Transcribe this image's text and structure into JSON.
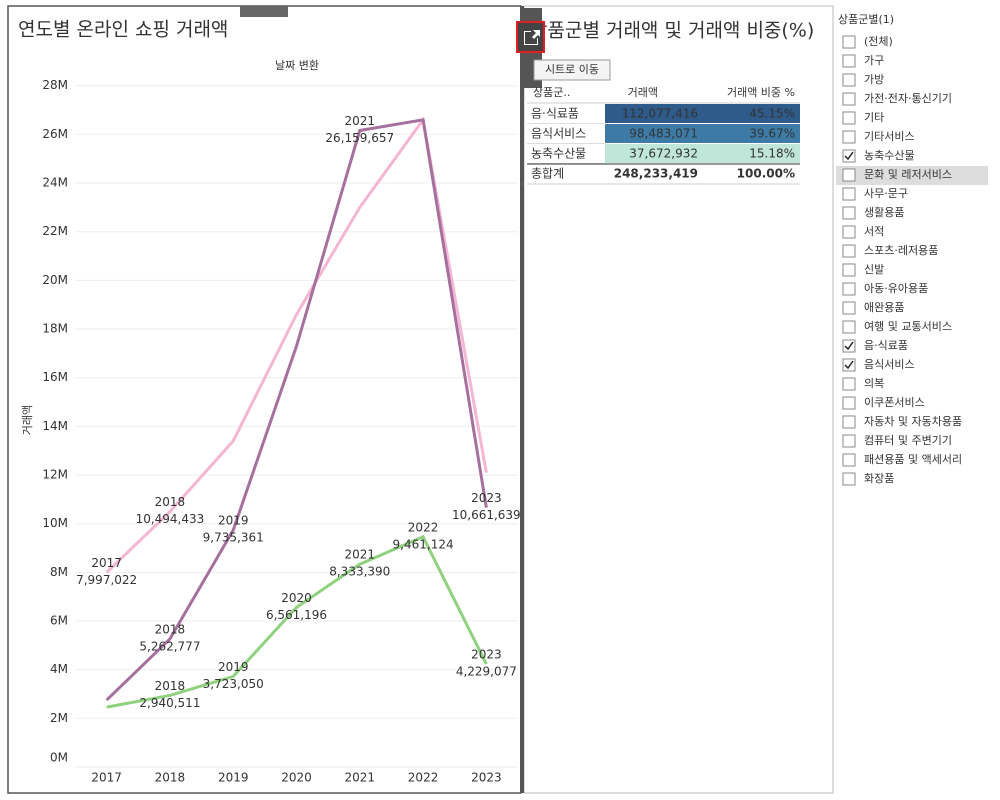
{
  "chart_data": {
    "type": "line",
    "title": "연도별 온라인 쇼핑 거래액",
    "x_axis_title": "날짜 변환",
    "y_axis_title": "거래액",
    "categories": [
      "2017",
      "2018",
      "2019",
      "2020",
      "2021",
      "2022",
      "2023"
    ],
    "ylim": [
      0,
      28400000
    ],
    "yticks": [
      {
        "value": 0,
        "label": "0M"
      },
      {
        "value": 2000000,
        "label": "2M"
      },
      {
        "value": 4000000,
        "label": "4M"
      },
      {
        "value": 6000000,
        "label": "6M"
      },
      {
        "value": 8000000,
        "label": "8M"
      },
      {
        "value": 10000000,
        "label": "10M"
      },
      {
        "value": 12000000,
        "label": "12M"
      },
      {
        "value": 14000000,
        "label": "14M"
      },
      {
        "value": 16000000,
        "label": "16M"
      },
      {
        "value": 18000000,
        "label": "18M"
      },
      {
        "value": 20000000,
        "label": "20M"
      },
      {
        "value": 22000000,
        "label": "22M"
      },
      {
        "value": 24000000,
        "label": "24M"
      },
      {
        "value": 26000000,
        "label": "26M"
      },
      {
        "value": 28000000,
        "label": "28M"
      }
    ],
    "grid": true,
    "series": [
      {
        "color": "#f4b6d2",
        "values": [
          7997022,
          10494433,
          13400000,
          18600000,
          23000000,
          26600000,
          12100000
        ],
        "value_labels": [
          "7,997,022",
          "10,494,433",
          null,
          null,
          null,
          null,
          null
        ]
      },
      {
        "color": "#a5709e",
        "values": [
          2750000,
          5262777,
          9735361,
          17300000,
          26159657,
          26600000,
          10661639
        ],
        "value_labels": [
          null,
          "5,262,777",
          "9,735,361",
          null,
          "26,159,657",
          null,
          "10,661,639"
        ]
      },
      {
        "color": "#8fd17e",
        "values": [
          2460000,
          2940511,
          3723050,
          6561196,
          8333390,
          9461124,
          4229077
        ],
        "value_labels": [
          null,
          "2,940,511",
          "3,723,050",
          "6,561,196",
          "8,333,390",
          "9,461,124",
          "4,229,077"
        ]
      }
    ]
  },
  "table": {
    "title": "상품군별 거래액 및 거래액 비중(%)",
    "tooltip": "시트로 이동",
    "headers": [
      "상품군..",
      "거래액",
      "거래액 비중 %"
    ],
    "rows": [
      [
        "음·식료품",
        "112,077,416",
        "45.15%"
      ],
      [
        "음식서비스",
        "98,483,071",
        "39.67%"
      ],
      [
        "농축수산물",
        "37,672,932",
        "15.18%"
      ]
    ],
    "total": [
      "총합계",
      "248,233,419",
      "100.00%"
    ]
  },
  "filter": {
    "title": "상품군별(1)",
    "items": [
      {
        "label": "(전체)",
        "checked": false
      },
      {
        "label": "가구",
        "checked": false
      },
      {
        "label": "가방",
        "checked": false
      },
      {
        "label": "가전·전자·통신기기",
        "checked": false
      },
      {
        "label": "기타",
        "checked": false
      },
      {
        "label": "기타서비스",
        "checked": false
      },
      {
        "label": "농축수산물",
        "checked": true
      },
      {
        "label": "문화 및 레저서비스",
        "checked": false
      },
      {
        "label": "사무·문구",
        "checked": false
      },
      {
        "label": "생활용품",
        "checked": false
      },
      {
        "label": "서적",
        "checked": false
      },
      {
        "label": "스포츠·레저용품",
        "checked": false
      },
      {
        "label": "신발",
        "checked": false
      },
      {
        "label": "아동·유아용품",
        "checked": false
      },
      {
        "label": "애완용품",
        "checked": false
      },
      {
        "label": "여행 및 교통서비스",
        "checked": false
      },
      {
        "label": "음·식료품",
        "checked": true
      },
      {
        "label": "음식서비스",
        "checked": true
      },
      {
        "label": "의복",
        "checked": false
      },
      {
        "label": "이쿠폰서비스",
        "checked": false
      },
      {
        "label": "자동차 및 자동차용품",
        "checked": false
      },
      {
        "label": "컴퓨터 및 주변기기",
        "checked": false
      },
      {
        "label": "패션용품 및 액세서리",
        "checked": false
      },
      {
        "label": "화장품",
        "checked": false
      }
    ]
  }
}
